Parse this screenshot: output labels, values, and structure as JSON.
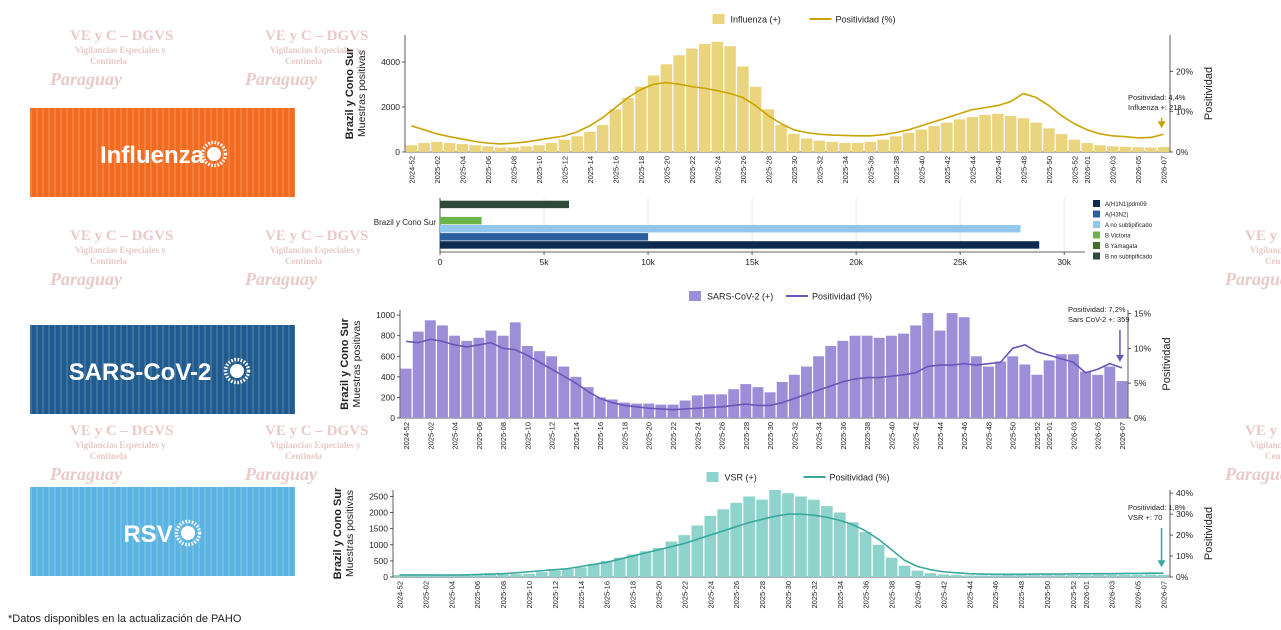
{
  "watermark": {
    "lines": [
      "VE y C – DGVS",
      "Vigilancias Especiales y",
      "Centinela",
      "Paraguay"
    ]
  },
  "banners": [
    {
      "label": "Influenza",
      "color": "#f26b21"
    },
    {
      "label": "SARS-CoV-2",
      "color": "#1f5b8e"
    },
    {
      "label": "RSV",
      "color": "#5bb3e2"
    }
  ],
  "footnote": "*Datos disponibles en la actualización de PAHO",
  "chart_data": [
    {
      "type": "bar_line",
      "y_title": "Brazil y Cono Sur",
      "y_subtitle": "Muestras positivas",
      "y2_title": "Positividad",
      "annotations": [
        "Positividad: 4,4%",
        "Influenza +: 218"
      ],
      "categories": [
        "2024-52",
        null,
        "2025-02",
        null,
        "2025-04",
        null,
        "2025-06",
        null,
        "2025-08",
        null,
        "2025-10",
        null,
        "2025-12",
        null,
        "2025-14",
        null,
        "2025-16",
        null,
        "2025-18",
        null,
        "2025-20",
        null,
        "2025-22",
        null,
        "2025-24",
        null,
        "2025-26",
        null,
        "2025-28",
        null,
        "2025-30",
        null,
        "2025-32",
        null,
        "2025-34",
        null,
        "2025-36",
        null,
        "2025-38",
        null,
        "2025-40",
        null,
        "2025-42",
        null,
        "2025-44",
        null,
        "2025-46",
        null,
        "2025-48",
        null,
        "2025-50",
        null,
        "2025-52",
        "2026-01",
        null,
        "2026-03",
        null,
        "2026-05",
        null,
        "2026-07"
      ],
      "ylim": [
        0,
        5200
      ],
      "yticks": [
        0,
        2000,
        4000
      ],
      "y2lim": [
        0,
        29
      ],
      "y2ticks": [
        {
          "value": 0,
          "label": "0%"
        },
        {
          "value": 10,
          "label": "10%"
        },
        {
          "value": 20,
          "label": "20%"
        }
      ],
      "series": [
        {
          "name": "Influenza (+)",
          "color": "#ead47e",
          "kind": "bar",
          "values": [
            300,
            400,
            450,
            400,
            350,
            300,
            250,
            200,
            200,
            250,
            300,
            400,
            550,
            700,
            900,
            1200,
            1900,
            2400,
            2900,
            3400,
            3900,
            4300,
            4600,
            4800,
            4900,
            4700,
            3800,
            2900,
            1900,
            1200,
            800,
            600,
            500,
            450,
            400,
            400,
            450,
            550,
            700,
            850,
            1000,
            1150,
            1300,
            1450,
            1550,
            1650,
            1700,
            1600,
            1500,
            1300,
            1050,
            800,
            550,
            400,
            300,
            250,
            230,
            210,
            200,
            218
          ]
        },
        {
          "name": "Positividad (%)",
          "color": "#c9a400",
          "kind": "line",
          "axis": "y2",
          "values": [
            6.5,
            5.5,
            4.5,
            3.8,
            3.2,
            2.6,
            2.2,
            2.0,
            2.2,
            2.5,
            3.0,
            3.5,
            4.0,
            5.0,
            6.5,
            8.5,
            11.0,
            13.5,
            15.5,
            16.8,
            17.2,
            16.8,
            16.2,
            15.8,
            15.2,
            14.5,
            13.5,
            11.5,
            9.0,
            7.0,
            5.5,
            4.8,
            4.4,
            4.2,
            4.1,
            4.0,
            4.0,
            4.3,
            4.8,
            5.5,
            6.5,
            7.5,
            8.5,
            9.5,
            10.5,
            11.0,
            11.5,
            12.5,
            14.5,
            13.5,
            11.5,
            9.0,
            7.0,
            5.5,
            4.5,
            4.0,
            3.8,
            3.5,
            3.6,
            4.4
          ]
        }
      ]
    },
    {
      "type": "hbar",
      "categories": [
        "Brazil y Cono Sur"
      ],
      "xlim": [
        0,
        31000
      ],
      "xticks": [
        0,
        {
          "value": 5000,
          "label": "5k"
        },
        {
          "value": 10000,
          "label": "10k"
        },
        {
          "value": 15000,
          "label": "15k"
        },
        {
          "value": 20000,
          "label": "20k"
        },
        {
          "value": 25000,
          "label": "25k"
        },
        {
          "value": 30000,
          "label": "30k"
        }
      ],
      "grid": true,
      "series": [
        {
          "name": "A(H1N1)pdm09",
          "color": "#0d2a4f",
          "values": [
            28800
          ]
        },
        {
          "name": "A(H3N2)",
          "color": "#2d5f9e",
          "values": [
            10000
          ]
        },
        {
          "name": "A no subtipificado",
          "color": "#93c6ec",
          "values": [
            27900
          ]
        },
        {
          "name": "B Victoria",
          "color": "#6db34c",
          "values": [
            2000
          ]
        },
        {
          "name": "B Yamagata",
          "color": "#3f6f2a",
          "values": [
            0
          ]
        },
        {
          "name": "B no subtipificado",
          "color": "#2f4a3b",
          "values": [
            6200
          ]
        }
      ]
    },
    {
      "type": "bar_line",
      "y_title": "Brazil y Cono Sur",
      "y_subtitle": "Muestras positivas",
      "y2_title": "Positividad",
      "annotations": [
        "Positividad: 7,2%",
        "Sars CoV-2 +: 359"
      ],
      "categories": [
        "2024-52",
        null,
        "2025-02",
        null,
        "2025-04",
        null,
        "2025-06",
        null,
        "2025-08",
        null,
        "2025-10",
        null,
        "2025-12",
        null,
        "2025-14",
        null,
        "2025-16",
        null,
        "2025-18",
        null,
        "2025-20",
        null,
        "2025-22",
        null,
        "2025-24",
        null,
        "2025-26",
        null,
        "2025-28",
        null,
        "2025-30",
        null,
        "2025-32",
        null,
        "2025-34",
        null,
        "2025-36",
        null,
        "2025-38",
        null,
        "2025-40",
        null,
        "2025-42",
        null,
        "2025-44",
        null,
        "2025-46",
        null,
        "2025-48",
        null,
        "2025-50",
        null,
        "2025-52",
        "2026-01",
        null,
        "2026-03",
        null,
        "2026-05",
        null,
        "2026-07"
      ],
      "ylim": [
        0,
        1050
      ],
      "yticks": [
        0,
        200,
        400,
        600,
        800,
        1000
      ],
      "y2lim": [
        0,
        15.5
      ],
      "y2ticks": [
        {
          "value": 0,
          "label": "0%"
        },
        {
          "value": 5,
          "label": "5%"
        },
        {
          "value": 10,
          "label": "10%"
        },
        {
          "value": 15,
          "label": "15%"
        }
      ],
      "series": [
        {
          "name": "SARS-CoV-2 (+)",
          "color": "#9c8fd8",
          "kind": "bar",
          "values": [
            480,
            840,
            950,
            900,
            800,
            750,
            780,
            850,
            800,
            930,
            700,
            650,
            600,
            500,
            400,
            300,
            200,
            180,
            150,
            140,
            140,
            130,
            130,
            170,
            220,
            230,
            230,
            280,
            330,
            300,
            250,
            350,
            420,
            500,
            600,
            700,
            750,
            800,
            800,
            780,
            800,
            820,
            900,
            1020,
            850,
            1020,
            980,
            600,
            500,
            550,
            600,
            520,
            420,
            560,
            620,
            620,
            450,
            420,
            500,
            359
          ]
        },
        {
          "name": "Positividad (%)",
          "color": "#6a56b8",
          "kind": "line",
          "axis": "y2",
          "values": [
            11.0,
            10.8,
            11.3,
            11.0,
            10.5,
            10.2,
            10.5,
            10.8,
            10.0,
            9.8,
            9.0,
            8.0,
            7.0,
            6.0,
            5.0,
            3.8,
            2.8,
            2.2,
            1.8,
            1.6,
            1.4,
            1.3,
            1.2,
            1.3,
            1.4,
            1.5,
            1.6,
            1.8,
            2.0,
            1.8,
            1.8,
            2.2,
            2.8,
            3.4,
            4.0,
            4.6,
            5.2,
            5.6,
            5.8,
            5.8,
            6.0,
            6.2,
            6.5,
            7.4,
            7.6,
            7.6,
            7.8,
            7.6,
            7.8,
            8.0,
            10.0,
            10.5,
            9.5,
            9.0,
            8.5,
            8.0,
            6.5,
            7.0,
            7.8,
            7.2
          ]
        }
      ]
    },
    {
      "type": "bar_line",
      "y_title": "Brazil y Cono Sur",
      "y_subtitle": "Muestras positivas",
      "y2_title": "Positividad",
      "annotations": [
        "Positividad: 1,8%",
        "VSR +: 70"
      ],
      "categories": [
        "2024-52",
        null,
        "2025-02",
        null,
        "2025-04",
        null,
        "2025-06",
        null,
        "2025-08",
        null,
        "2025-10",
        null,
        "2025-12",
        null,
        "2025-14",
        null,
        "2025-16",
        null,
        "2025-18",
        null,
        "2025-20",
        null,
        "2025-22",
        null,
        "2025-24",
        null,
        "2025-26",
        null,
        "2025-28",
        null,
        "2025-30",
        null,
        "2025-32",
        null,
        "2025-34",
        null,
        "2025-36",
        null,
        "2025-38",
        null,
        "2025-40",
        null,
        "2025-42",
        null,
        "2025-44",
        null,
        "2025-46",
        null,
        "2025-48",
        null,
        "2025-50",
        null,
        "2025-52",
        "2026-01",
        null,
        "2026-03",
        null,
        "2026-05",
        null,
        "2026-07"
      ],
      "ylim": [
        0,
        2700
      ],
      "yticks": [
        0,
        500,
        1000,
        1500,
        2000,
        2500
      ],
      "y2lim": [
        0,
        41.5
      ],
      "y2ticks": [
        {
          "value": 0,
          "label": "0%"
        },
        {
          "value": 10,
          "label": "10%"
        },
        {
          "value": 20,
          "label": "20%"
        },
        {
          "value": 30,
          "label": "30%"
        },
        {
          "value": 40,
          "label": "40%"
        }
      ],
      "series": [
        {
          "name": "VSR (+)",
          "color": "#8fd4cc",
          "kind": "bar",
          "values": [
            60,
            60,
            60,
            50,
            50,
            50,
            60,
            70,
            80,
            90,
            100,
            150,
            200,
            250,
            300,
            400,
            500,
            600,
            700,
            800,
            900,
            1100,
            1300,
            1600,
            1900,
            2100,
            2300,
            2500,
            2400,
            2700,
            2600,
            2500,
            2400,
            2200,
            2000,
            1700,
            1400,
            1000,
            600,
            350,
            200,
            120,
            80,
            60,
            50,
            50,
            50,
            60,
            60,
            60,
            60,
            60,
            60,
            60,
            70,
            70,
            70,
            70,
            80,
            70
          ]
        },
        {
          "name": "Positividad (%)",
          "color": "#3aa89d",
          "kind": "line",
          "axis": "y2",
          "values": [
            1.0,
            1.0,
            1.0,
            0.9,
            0.9,
            1.0,
            1.2,
            1.4,
            1.6,
            2.0,
            2.5,
            3.0,
            3.5,
            4.0,
            5.0,
            6.0,
            7.0,
            8.5,
            10.0,
            11.5,
            13.0,
            14.5,
            16.0,
            18.0,
            20.0,
            22.0,
            24.0,
            26.0,
            27.5,
            29.0,
            30.0,
            30.0,
            29.5,
            28.5,
            27.0,
            25.0,
            22.0,
            18.0,
            13.0,
            8.0,
            5.0,
            3.5,
            2.5,
            2.0,
            1.6,
            1.4,
            1.3,
            1.3,
            1.3,
            1.4,
            1.4,
            1.4,
            1.5,
            1.5,
            1.6,
            1.6,
            1.7,
            1.7,
            1.8,
            1.8
          ]
        }
      ]
    }
  ]
}
